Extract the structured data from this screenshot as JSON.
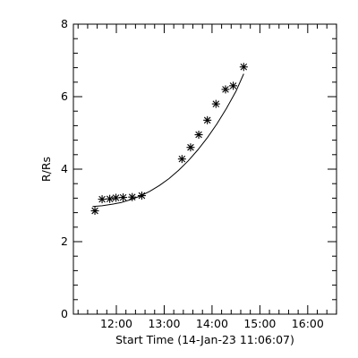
{
  "chart_data": {
    "type": "scatter",
    "title": "",
    "xlabel": "Start Time (14-Jan-23 11:06:07)",
    "ylabel": "R/Rs",
    "x_unit": "hours since 11:06:07",
    "xlim": [
      0,
      5.5
    ],
    "ylim": [
      0,
      8
    ],
    "x_ticks": [
      {
        "value": 0.898,
        "label": "12:00"
      },
      {
        "value": 1.898,
        "label": "13:00"
      },
      {
        "value": 2.898,
        "label": "14:00"
      },
      {
        "value": 3.898,
        "label": "15:00"
      },
      {
        "value": 4.898,
        "label": "16:00"
      }
    ],
    "y_ticks": [
      0,
      2,
      4,
      6,
      8
    ],
    "grid": false,
    "series": [
      {
        "marker": "asterisk",
        "x": [
          0.45,
          0.6,
          0.76,
          0.89,
          1.04,
          1.23,
          1.43,
          2.27,
          2.45,
          2.62,
          2.8,
          2.98,
          3.18,
          3.34,
          3.56
        ],
        "y": [
          2.85,
          3.17,
          3.18,
          3.21,
          3.22,
          3.23,
          3.27,
          4.28,
          4.6,
          4.95,
          5.35,
          5.8,
          6.2,
          6.3,
          6.82
        ]
      }
    ],
    "fit_curve": {
      "x": [
        0.4,
        0.6,
        0.8,
        1.0,
        1.2,
        1.4,
        1.6,
        1.8,
        2.0,
        2.2,
        2.4,
        2.6,
        2.8,
        3.0,
        3.2,
        3.4,
        3.56
      ],
      "y": [
        2.97,
        2.99,
        3.03,
        3.08,
        3.16,
        3.26,
        3.39,
        3.55,
        3.74,
        3.97,
        4.23,
        4.53,
        4.87,
        5.25,
        5.68,
        6.15,
        6.63
      ]
    }
  }
}
